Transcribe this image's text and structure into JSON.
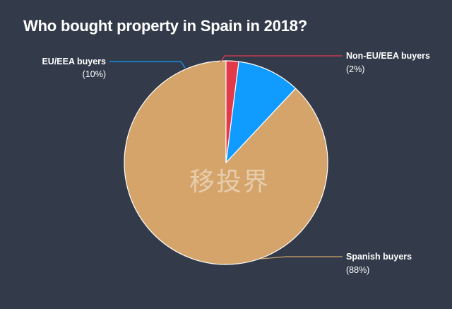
{
  "chart_data": {
    "type": "pie",
    "title": "Who bought property in Spain in 2018?",
    "slices": [
      {
        "name": "Spanish buyers",
        "value": 88,
        "pct_label": "(88%)",
        "color": "#d4a46a",
        "label_side": "right"
      },
      {
        "name": "EU/EEA buyers",
        "value": 10,
        "pct_label": "(10%)",
        "color": "#0f9bff",
        "label_side": "left"
      },
      {
        "name": "Non-EU/EEA buyers",
        "value": 2,
        "pct_label": "(2%)",
        "color": "#e23a4a",
        "label_side": "right"
      }
    ],
    "legend": "none",
    "start_direction": "top",
    "slice_order": "counterclockwise"
  },
  "watermark": "移投界",
  "colors": {
    "background": "#333b4a",
    "text": "#ffffff"
  }
}
